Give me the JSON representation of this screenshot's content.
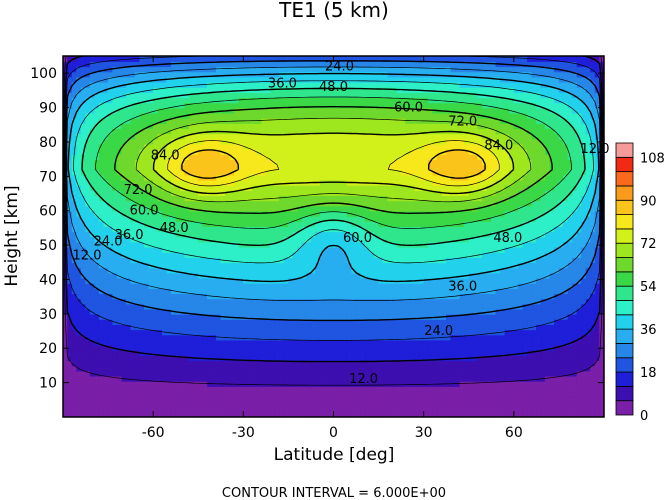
{
  "chart_data": {
    "type": "contour",
    "title": "TE1 (5 km)",
    "xlabel": "Latitude [deg]",
    "ylabel": "Height [km]",
    "xlim": [
      -90,
      90
    ],
    "ylim": [
      0,
      105
    ],
    "xticks": [
      -60,
      -30,
      0,
      30,
      60
    ],
    "yticks": [
      10,
      20,
      30,
      40,
      50,
      60,
      70,
      80,
      90,
      100
    ],
    "contour_interval": 6.0,
    "footer": "CONTOUR INTERVAL = 6.000E+00",
    "colorbar": {
      "min": 0,
      "max": 114,
      "step": 6,
      "tick_values": [
        0,
        18,
        36,
        54,
        72,
        90,
        108
      ],
      "tick_labels": [
        "0",
        "18",
        "36",
        "54",
        "72",
        "90",
        "108"
      ],
      "colors": [
        "#7a1fa8",
        "#3d0fb0",
        "#1f1fd9",
        "#1f55e0",
        "#2787e8",
        "#28aef0",
        "#22d2ec",
        "#2ef0c8",
        "#2fe68c",
        "#3ad846",
        "#6ed82c",
        "#9ee61e",
        "#d2f01a",
        "#f6e81a",
        "#fbc41a",
        "#fb9b1c",
        "#fb6a1c",
        "#f12a14",
        "#f79a9a"
      ]
    },
    "contour_labels": [
      {
        "text": "12.0",
        "lat": -82,
        "z": 47
      },
      {
        "text": "24.0",
        "lat": -75,
        "z": 51
      },
      {
        "text": "36.0",
        "lat": -68,
        "z": 53
      },
      {
        "text": "48.0",
        "lat": -53,
        "z": 55
      },
      {
        "text": "60.0",
        "lat": -63,
        "z": 60
      },
      {
        "text": "72.0",
        "lat": -65,
        "z": 66
      },
      {
        "text": "84.0",
        "lat": -56,
        "z": 76
      },
      {
        "text": "84.0",
        "lat": 55,
        "z": 79
      },
      {
        "text": "72.0",
        "lat": 43,
        "z": 86
      },
      {
        "text": "60.0",
        "lat": 25,
        "z": 90
      },
      {
        "text": "48.0",
        "lat": 0,
        "z": 96
      },
      {
        "text": "36.0",
        "lat": -17,
        "z": 97
      },
      {
        "text": "24.0",
        "lat": 2,
        "z": 102
      },
      {
        "text": "60.0",
        "lat": 8,
        "z": 52
      },
      {
        "text": "48.0",
        "lat": 58,
        "z": 52
      },
      {
        "text": "36.0",
        "lat": 43,
        "z": 38
      },
      {
        "text": "24.0",
        "lat": 35,
        "z": 25
      },
      {
        "text": "12.0",
        "lat": 10,
        "z": 11
      },
      {
        "text": "12.0",
        "lat": 87,
        "z": 78
      }
    ]
  }
}
